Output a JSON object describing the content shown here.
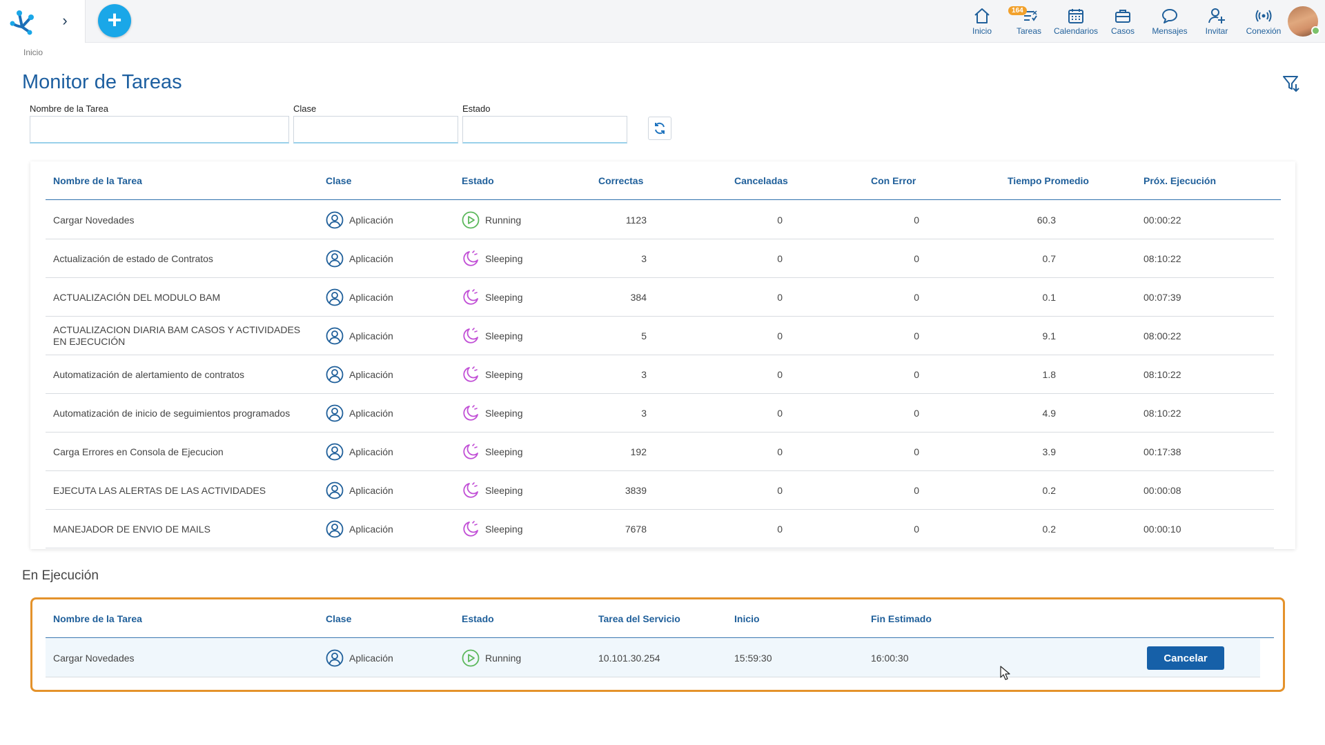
{
  "topbar": {
    "nav": [
      {
        "id": "inicio",
        "label": "Inicio",
        "icon": "home-icon"
      },
      {
        "id": "tareas",
        "label": "Tareas",
        "icon": "tasks-icon",
        "badge": "164"
      },
      {
        "id": "calendarios",
        "label": "Calendarios",
        "icon": "calendar-icon"
      },
      {
        "id": "casos",
        "label": "Casos",
        "icon": "briefcase-icon"
      },
      {
        "id": "mensajes",
        "label": "Mensajes",
        "icon": "chat-icon"
      },
      {
        "id": "invitar",
        "label": "Invitar",
        "icon": "invite-user-icon"
      },
      {
        "id": "conexion",
        "label": "Conexión",
        "icon": "connection-icon"
      }
    ],
    "add_icon": "+",
    "expand_icon": "›"
  },
  "breadcrumb": "Inicio",
  "page_title": "Monitor de Tareas",
  "filters": {
    "nombre_label": "Nombre de la Tarea",
    "clase_label": "Clase",
    "estado_label": "Estado",
    "nombre_value": "",
    "clase_value": "",
    "estado_value": ""
  },
  "tasks_table": {
    "headers": [
      "Nombre de la Tarea",
      "Clase",
      "Estado",
      "Correctas",
      "Canceladas",
      "Con Error",
      "Tiempo Promedio",
      "Próx. Ejecución"
    ],
    "rows": [
      {
        "nombre": "Cargar Novedades",
        "clase": "Aplicación",
        "estado": "Running",
        "correctas": "1123",
        "canceladas": "0",
        "con_error": "0",
        "tiempo": "60.3",
        "proxima": "00:00:22"
      },
      {
        "nombre": "Actualización de estado de Contratos",
        "clase": "Aplicación",
        "estado": "Sleeping",
        "correctas": "3",
        "canceladas": "0",
        "con_error": "0",
        "tiempo": "0.7",
        "proxima": "08:10:22"
      },
      {
        "nombre": "ACTUALIZACIÓN DEL MODULO BAM",
        "clase": "Aplicación",
        "estado": "Sleeping",
        "correctas": "384",
        "canceladas": "0",
        "con_error": "0",
        "tiempo": "0.1",
        "proxima": "00:07:39"
      },
      {
        "nombre": "ACTUALIZACION DIARIA BAM CASOS Y ACTIVIDADES EN EJECUCIÓN",
        "clase": "Aplicación",
        "estado": "Sleeping",
        "correctas": "5",
        "canceladas": "0",
        "con_error": "0",
        "tiempo": "9.1",
        "proxima": "08:00:22"
      },
      {
        "nombre": "Automatización de alertamiento de contratos",
        "clase": "Aplicación",
        "estado": "Sleeping",
        "correctas": "3",
        "canceladas": "0",
        "con_error": "0",
        "tiempo": "1.8",
        "proxima": "08:10:22"
      },
      {
        "nombre": "Automatización de inicio de seguimientos programados",
        "clase": "Aplicación",
        "estado": "Sleeping",
        "correctas": "3",
        "canceladas": "0",
        "con_error": "0",
        "tiempo": "4.9",
        "proxima": "08:10:22"
      },
      {
        "nombre": "Carga Errores en Consola de Ejecucion",
        "clase": "Aplicación",
        "estado": "Sleeping",
        "correctas": "192",
        "canceladas": "0",
        "con_error": "0",
        "tiempo": "3.9",
        "proxima": "00:17:38"
      },
      {
        "nombre": "EJECUTA LAS ALERTAS DE LAS ACTIVIDADES",
        "clase": "Aplicación",
        "estado": "Sleeping",
        "correctas": "3839",
        "canceladas": "0",
        "con_error": "0",
        "tiempo": "0.2",
        "proxima": "00:00:08"
      },
      {
        "nombre": "MANEJADOR DE ENVIO DE MAILS",
        "clase": "Aplicación",
        "estado": "Sleeping",
        "correctas": "7678",
        "canceladas": "0",
        "con_error": "0",
        "tiempo": "0.2",
        "proxima": "00:00:10"
      }
    ]
  },
  "running_section": {
    "title": "En Ejecución",
    "headers": [
      "Nombre de la Tarea",
      "Clase",
      "Estado",
      "Tarea del Servicio",
      "Inicio",
      "Fin Estimado"
    ],
    "rows": [
      {
        "nombre": "Cargar Novedades",
        "clase": "Aplicación",
        "estado": "Running",
        "servicio": "10.101.30.254",
        "inicio": "15:59:30",
        "fin": "16:00:30",
        "action": "Cancelar"
      }
    ]
  },
  "colors": {
    "brand_blue": "#1d5fa0",
    "add_button": "#1aa7e8",
    "running_green": "#5cb85c",
    "sleeping_purple": "#c14fd6",
    "highlight_orange": "#e4922b",
    "cancel_button": "#1660a8"
  }
}
